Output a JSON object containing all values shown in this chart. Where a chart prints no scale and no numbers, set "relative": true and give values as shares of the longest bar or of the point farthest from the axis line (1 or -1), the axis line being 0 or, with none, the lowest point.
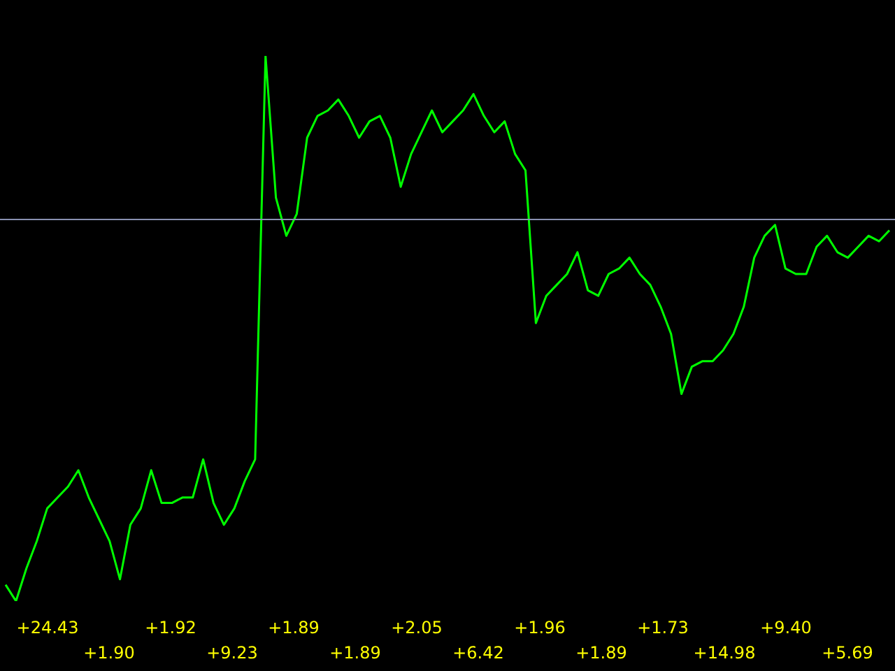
{
  "chart_data": {
    "type": "line",
    "relative": true,
    "legend": false,
    "marker": "none",
    "line_style": "solid",
    "categories": [
      null,
      null,
      null,
      null,
      null,
      null,
      null,
      null,
      null,
      null,
      null,
      null,
      null,
      null,
      null,
      null,
      null,
      null,
      null,
      null,
      null,
      null,
      null,
      null,
      null,
      null,
      null,
      null,
      null,
      null,
      null,
      null,
      null,
      null,
      null,
      null,
      null,
      null,
      null,
      null,
      null,
      null,
      null,
      null,
      null,
      null,
      null,
      null,
      null,
      null,
      null,
      null,
      null,
      null,
      null,
      null,
      null,
      null,
      null,
      null,
      null,
      null,
      null,
      null,
      null,
      null,
      null,
      null,
      null,
      null,
      null,
      null,
      null,
      null,
      null,
      null,
      null,
      null,
      null,
      null,
      null,
      null,
      null,
      null,
      null,
      null
    ],
    "series": [
      {
        "color": "#00ff00",
        "values": [
          0.03,
          0,
          0.06,
          0.11,
          0.17,
          0.19,
          0.21,
          0.24,
          0.19,
          0.15,
          0.11,
          0.04,
          0.14,
          0.17,
          0.24,
          0.18,
          0.18,
          0.19,
          0.19,
          0.26,
          0.18,
          0.14,
          0.17,
          0.22,
          0.26,
          1,
          0.74,
          0.67,
          0.71,
          0.85,
          0.89,
          0.9,
          0.92,
          0.89,
          0.85,
          0.88,
          0.89,
          0.85,
          0.76,
          0.82,
          0.86,
          0.9,
          0.86,
          0.88,
          0.9,
          0.93,
          0.89,
          0.86,
          0.88,
          0.82,
          0.79,
          0.51,
          0.56,
          0.58,
          0.6,
          0.64,
          0.57,
          0.56,
          0.6,
          0.61,
          0.63,
          0.6,
          0.58,
          0.54,
          0.49,
          0.38,
          0.43,
          0.44,
          0.44,
          0.46,
          0.49,
          0.54,
          0.63,
          0.67,
          0.69,
          0.61,
          0.6,
          0.6,
          0.65,
          0.67,
          0.64,
          0.63,
          0.65,
          0.67,
          0.66,
          0.68
        ]
      }
    ],
    "ref_lines": [
      {
        "axis": "y",
        "value": 0.7,
        "color": "#8890b0"
      }
    ],
    "annotations": [
      "+24.43",
      "+1.90",
      "+1.92",
      "+9.23",
      "+1.89",
      "+1.89",
      "+2.05",
      "+6.42",
      "+1.96",
      "+1.89",
      "+1.73",
      "+14.98",
      "+9.40",
      "+5.69"
    ]
  }
}
